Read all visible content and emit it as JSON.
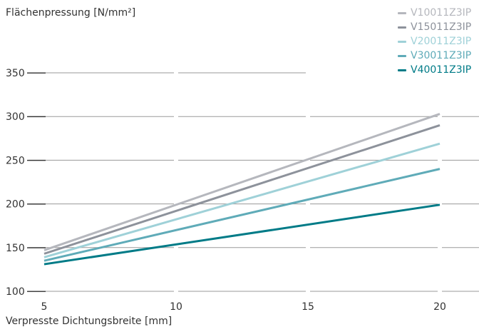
{
  "chart_data": {
    "type": "line",
    "title": "",
    "ylabel": "Flächenpressung [N/mm²]",
    "xlabel": "Verpresste Dichtungsbreite [mm]",
    "xlim": [
      5,
      20
    ],
    "ylim": [
      100,
      350
    ],
    "x_ticks": [
      "5",
      "10",
      "15",
      "20"
    ],
    "y_ticks": [
      "100",
      "150",
      "200",
      "250",
      "300",
      "350"
    ],
    "grid": true,
    "legend_position": "top-right",
    "series": [
      {
        "name": "V10011Z3IP",
        "color": "#b5b7bd",
        "x": [
          5,
          20
        ],
        "y": [
          147,
          303
        ]
      },
      {
        "name": "V15011Z3IP",
        "color": "#8d929b",
        "x": [
          5,
          20
        ],
        "y": [
          143,
          290
        ]
      },
      {
        "name": "V20011Z3IP",
        "color": "#9fd1d8",
        "x": [
          5,
          20
        ],
        "y": [
          139,
          269
        ]
      },
      {
        "name": "V30011Z3IP",
        "color": "#5fabb8",
        "x": [
          5,
          20
        ],
        "y": [
          135,
          240
        ]
      },
      {
        "name": "V40011Z3IP",
        "color": "#007b87",
        "x": [
          5,
          20
        ],
        "y": [
          131,
          199
        ]
      }
    ]
  }
}
